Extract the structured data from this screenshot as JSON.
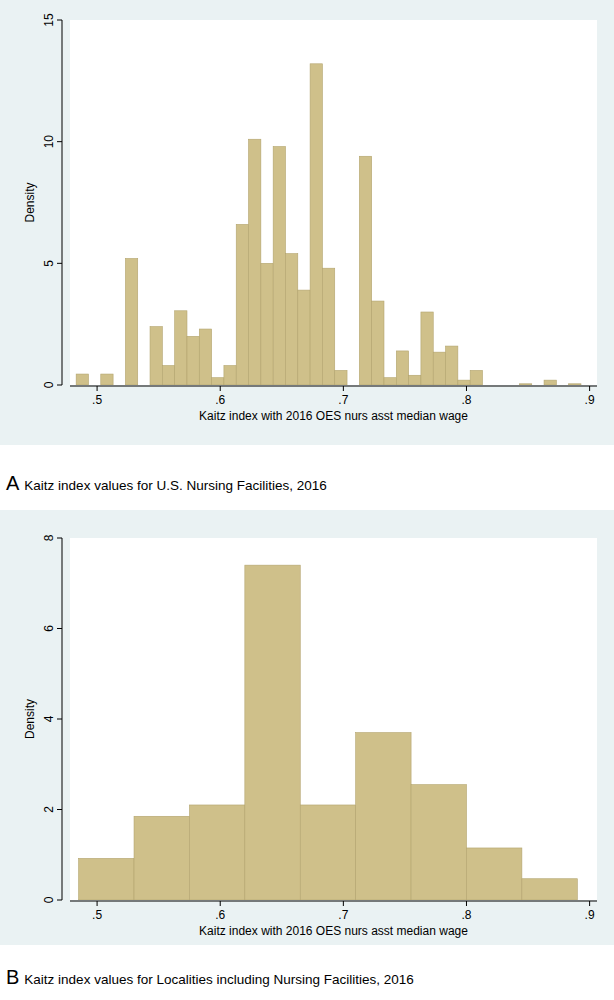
{
  "chart_data": [
    {
      "type": "histogram",
      "panel_label": "A",
      "title": "Kaitz index values for U.S. Nursing Facilities, 2016",
      "x_label": "Kaitz index with 2016 OES nurs asst median wage",
      "y_label": "Density",
      "bins": [
        0.483,
        0.493,
        0.503,
        0.513,
        0.523,
        0.533,
        0.543,
        0.553,
        0.563,
        0.573,
        0.583,
        0.593,
        0.603,
        0.613,
        0.623,
        0.633,
        0.643,
        0.653,
        0.663,
        0.673,
        0.683,
        0.693,
        0.703,
        0.713,
        0.723,
        0.733,
        0.743,
        0.753,
        0.763,
        0.773,
        0.783,
        0.793,
        0.803,
        0.813,
        0.823,
        0.833,
        0.843,
        0.853,
        0.863,
        0.873,
        0.883,
        0.893
      ],
      "values": [
        0.45,
        0,
        0.45,
        0,
        5.2,
        0,
        2.4,
        0.8,
        3.05,
        2.0,
        2.3,
        0.3,
        0.8,
        6.6,
        10.1,
        5.0,
        9.8,
        5.4,
        3.9,
        13.2,
        4.8,
        0.6,
        0,
        9.4,
        3.45,
        0.3,
        1.4,
        0.4,
        3.0,
        1.35,
        1.6,
        0.2,
        0.6,
        0,
        0,
        0,
        0.05,
        0,
        0.2,
        0,
        0.05
      ],
      "color": "#cfc08a",
      "xlim": [
        0.478,
        0.906
      ],
      "xticks": [
        {
          "value": 0.5,
          "label": ".5"
        },
        {
          "value": 0.6,
          "label": ".6"
        },
        {
          "value": 0.7,
          "label": ".7"
        },
        {
          "value": 0.8,
          "label": ".8"
        },
        {
          "value": 0.9,
          "label": ".9"
        }
      ],
      "ylim": [
        0,
        15
      ],
      "yticks": [
        0,
        5,
        10,
        15
      ],
      "grid": false
    },
    {
      "type": "histogram",
      "panel_label": "B",
      "title": "Kaitz index values for Localities including Nursing Facilities, 2016",
      "x_label": "Kaitz index with 2016 OES nurs asst median wage",
      "y_label": "Density",
      "bins": [
        0.485,
        0.53,
        0.575,
        0.62,
        0.665,
        0.71,
        0.755,
        0.8,
        0.845,
        0.89
      ],
      "values": [
        0.92,
        1.85,
        2.1,
        7.4,
        2.1,
        3.7,
        2.55,
        1.15,
        0.47
      ],
      "color": "#cfc08a",
      "xlim": [
        0.478,
        0.906
      ],
      "xticks": [
        {
          "value": 0.5,
          "label": ".5"
        },
        {
          "value": 0.6,
          "label": ".6"
        },
        {
          "value": 0.7,
          "label": ".7"
        },
        {
          "value": 0.8,
          "label": ".8"
        },
        {
          "value": 0.9,
          "label": ".9"
        }
      ],
      "ylim": [
        0,
        8
      ],
      "yticks": [
        0,
        2,
        4,
        6,
        8
      ],
      "grid": false
    }
  ]
}
